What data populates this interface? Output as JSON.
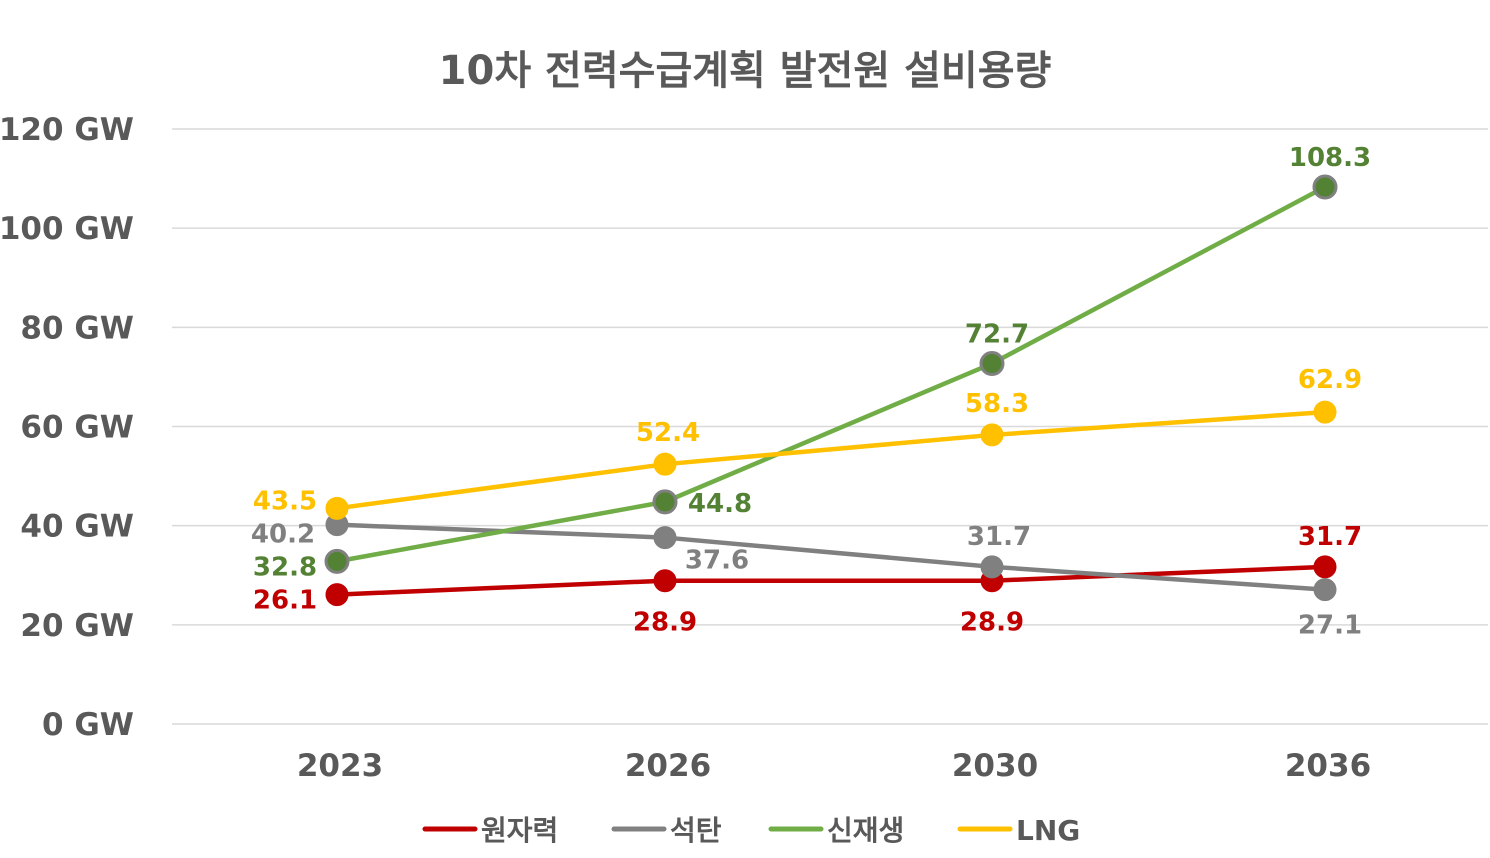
{
  "chart_data": {
    "type": "line",
    "title": "10차 전력수급계획 발전원 설비용량",
    "categories": [
      "2023",
      "2026",
      "2030",
      "2036"
    ],
    "ylim": [
      0,
      120
    ],
    "yticks": [
      "0 GW",
      "20 GW",
      "40 GW",
      "60 GW",
      "80 GW",
      "100 GW",
      "120 GW"
    ],
    "grid": true,
    "legend_position": "bottom",
    "series": [
      {
        "name": "원자력",
        "color": "#c00000",
        "marker_stroke": "#c00000",
        "values": [
          26.1,
          28.9,
          28.9,
          31.7
        ],
        "labels": [
          "26.1",
          "28.9",
          "28.9",
          "31.7"
        ]
      },
      {
        "name": "석탄",
        "color": "#808080",
        "marker_stroke": "#808080",
        "values": [
          40.2,
          37.6,
          31.7,
          27.1
        ],
        "labels": [
          "40.2",
          "37.6",
          "31.7",
          "27.1"
        ]
      },
      {
        "name": "신재생",
        "color": "#70ad47",
        "marker_fill": "#548235",
        "marker_stroke": "#808080",
        "values": [
          32.8,
          44.8,
          72.7,
          108.3
        ],
        "labels": [
          "32.8",
          "44.8",
          "72.7",
          "108.3"
        ]
      },
      {
        "name": "LNG",
        "color": "#ffc000",
        "marker_stroke": "#ffc000",
        "values": [
          43.5,
          52.4,
          58.3,
          62.9
        ],
        "labels": [
          "43.5",
          "52.4",
          "58.3",
          "62.9"
        ]
      }
    ]
  }
}
